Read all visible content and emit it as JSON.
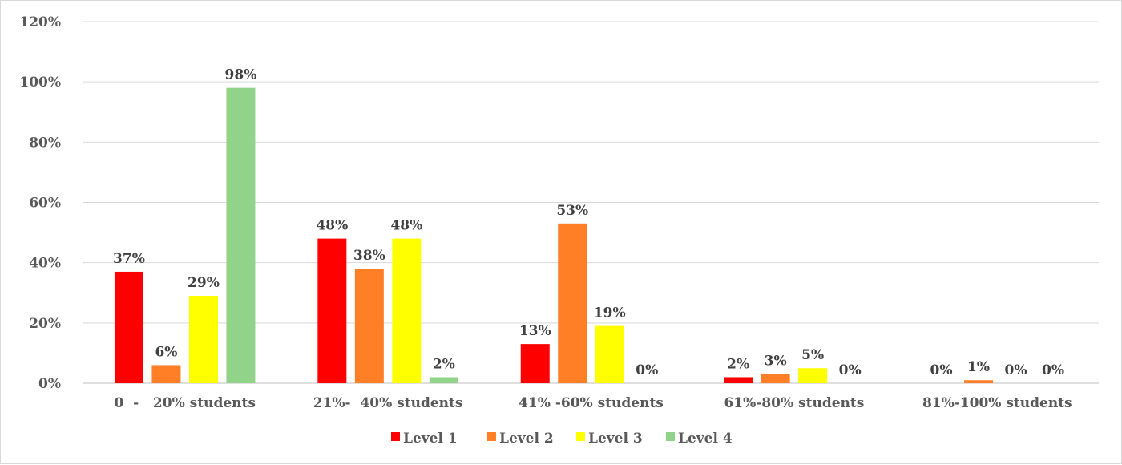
{
  "chart_data": {
    "type": "bar",
    "title": "",
    "xlabel": "",
    "ylabel": "",
    "ylim": [
      0,
      120
    ],
    "y_ticks": [
      "0%",
      "20%",
      "40%",
      "60%",
      "80%",
      "100%",
      "120%"
    ],
    "grid": true,
    "legend_position": "bottom",
    "categories": [
      "0  -   20% students",
      "21%-  40% students",
      "41% -60% students",
      "61%-80% students",
      "81%-100% students"
    ],
    "series": [
      {
        "name": "Level 1",
        "color": "#ff0000",
        "values": [
          37,
          48,
          13,
          2,
          0
        ],
        "labels": [
          "37%",
          "48%",
          "13%",
          "2%",
          "0%"
        ]
      },
      {
        "name": "Level 2",
        "color": "#ff7f27",
        "values": [
          6,
          38,
          53,
          3,
          1
        ],
        "labels": [
          "6%",
          "38%",
          "53%",
          "3%",
          "1%"
        ]
      },
      {
        "name": "Level 3",
        "color": "#ffff00",
        "values": [
          29,
          48,
          19,
          5,
          0
        ],
        "labels": [
          "29%",
          "48%",
          "19%",
          "5%",
          "0%"
        ]
      },
      {
        "name": "Level 4",
        "color": "#92d38a",
        "values": [
          98,
          2,
          0,
          0,
          0
        ],
        "labels": [
          "98%",
          "2%",
          "0%",
          "0%",
          "0%"
        ]
      }
    ]
  }
}
